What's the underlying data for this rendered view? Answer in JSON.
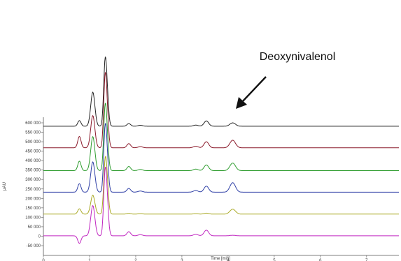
{
  "chart_data": {
    "type": "line",
    "xlabel": "Time [min]",
    "ylabel": "µAU",
    "xlim": [
      0,
      7.7
    ],
    "ylim": [
      -70000,
      680000
    ],
    "x_ticks": [
      "0",
      "1",
      "2",
      "3",
      "4",
      "5",
      "6",
      "7"
    ],
    "x_tick_values": [
      0,
      1,
      2,
      3,
      4,
      5,
      6,
      7
    ],
    "y_ticks": [
      "600 000",
      "550 000",
      "500 000",
      "450 000",
      "400 000",
      "350 000",
      "300 000",
      "250 000",
      "200 000",
      "150 000",
      "100 000",
      "50 000",
      "0",
      "-50 000"
    ],
    "y_tick_values": [
      600000,
      550000,
      500000,
      450000,
      400000,
      350000,
      300000,
      250000,
      200000,
      150000,
      100000,
      50000,
      0,
      -50000
    ],
    "annotation": {
      "text": "Deoxynivalenol",
      "x": 4.1,
      "y": 615000
    },
    "peaks_x": [
      0.78,
      1.07,
      1.33,
      1.37,
      1.85,
      2.1,
      3.3,
      3.53,
      4.1
    ],
    "series": [
      {
        "color": "#222222",
        "baseline": 582000,
        "peaks": [
          30000,
          180000,
          240000,
          200000,
          14000,
          5000,
          6000,
          28000,
          18000
        ]
      },
      {
        "color": "#8b1a2b",
        "baseline": 468000,
        "peaks": [
          60000,
          170000,
          260000,
          220000,
          22000,
          6000,
          8000,
          32000,
          40000
        ]
      },
      {
        "color": "#2e9c2e",
        "baseline": 347000,
        "peaks": [
          50000,
          180000,
          230000,
          200000,
          22000,
          6000,
          8000,
          30000,
          40000
        ]
      },
      {
        "color": "#2e3fa6",
        "baseline": 233000,
        "peaks": [
          45000,
          160000,
          230000,
          210000,
          20000,
          6000,
          9000,
          32000,
          50000
        ]
      },
      {
        "color": "#a9a924",
        "baseline": 117000,
        "peaks": [
          28000,
          100000,
          180000,
          190000,
          4000,
          2000,
          2000,
          5000,
          26000
        ]
      },
      {
        "color": "#c026c0",
        "baseline": 2000,
        "peaks": [
          -40000,
          160000,
          230000,
          210000,
          22000,
          6000,
          8000,
          30000,
          3000
        ]
      }
    ]
  }
}
